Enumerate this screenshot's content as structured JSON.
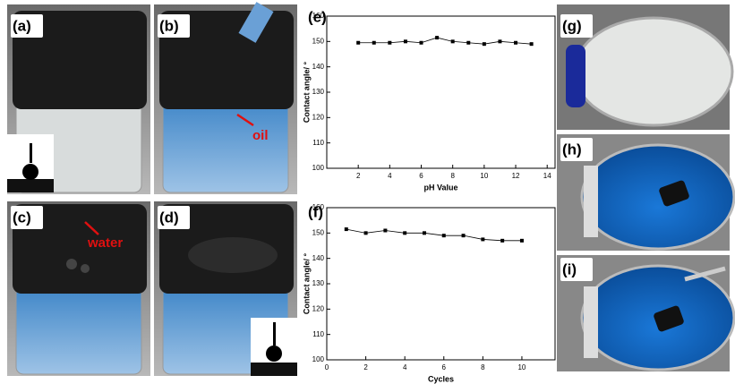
{
  "panels": [
    "(a)",
    "(b)",
    "(c)",
    "(d)",
    "(e)",
    "(f)",
    "(g)",
    "(h)",
    "(i)"
  ],
  "annotations": {
    "oil": "oil",
    "water": "water"
  },
  "chart_data": [
    {
      "type": "line",
      "x": [
        2,
        3,
        4,
        5,
        6,
        7,
        8,
        9,
        10,
        11,
        12,
        13
      ],
      "values": [
        149.5,
        149.5,
        149.5,
        150,
        149.5,
        151.5,
        150,
        149.5,
        149,
        150,
        149.5,
        149
      ],
      "color": "#000000",
      "xlim": [
        0,
        14.5
      ],
      "ylim": [
        100,
        160
      ],
      "xticks": [
        2,
        4,
        6,
        8,
        10,
        12,
        14
      ],
      "yticks": [
        100,
        110,
        120,
        130,
        140,
        150,
        160
      ],
      "xlabel": "pH Value",
      "ylabel": "Contact angle/ °"
    },
    {
      "type": "line",
      "x": [
        1,
        2,
        3,
        4,
        5,
        6,
        7,
        8,
        9,
        10
      ],
      "values": [
        151.5,
        150,
        151,
        150,
        150,
        149,
        149,
        147.5,
        147,
        147
      ],
      "color": "#000000",
      "xlim": [
        0,
        11.7
      ],
      "ylim": [
        100,
        160
      ],
      "xticks": [
        0,
        2,
        4,
        6,
        8,
        10
      ],
      "yticks": [
        100,
        110,
        120,
        130,
        140,
        150,
        160
      ],
      "xlabel": "Cycles",
      "ylabel": "Contact angle/ °"
    }
  ]
}
